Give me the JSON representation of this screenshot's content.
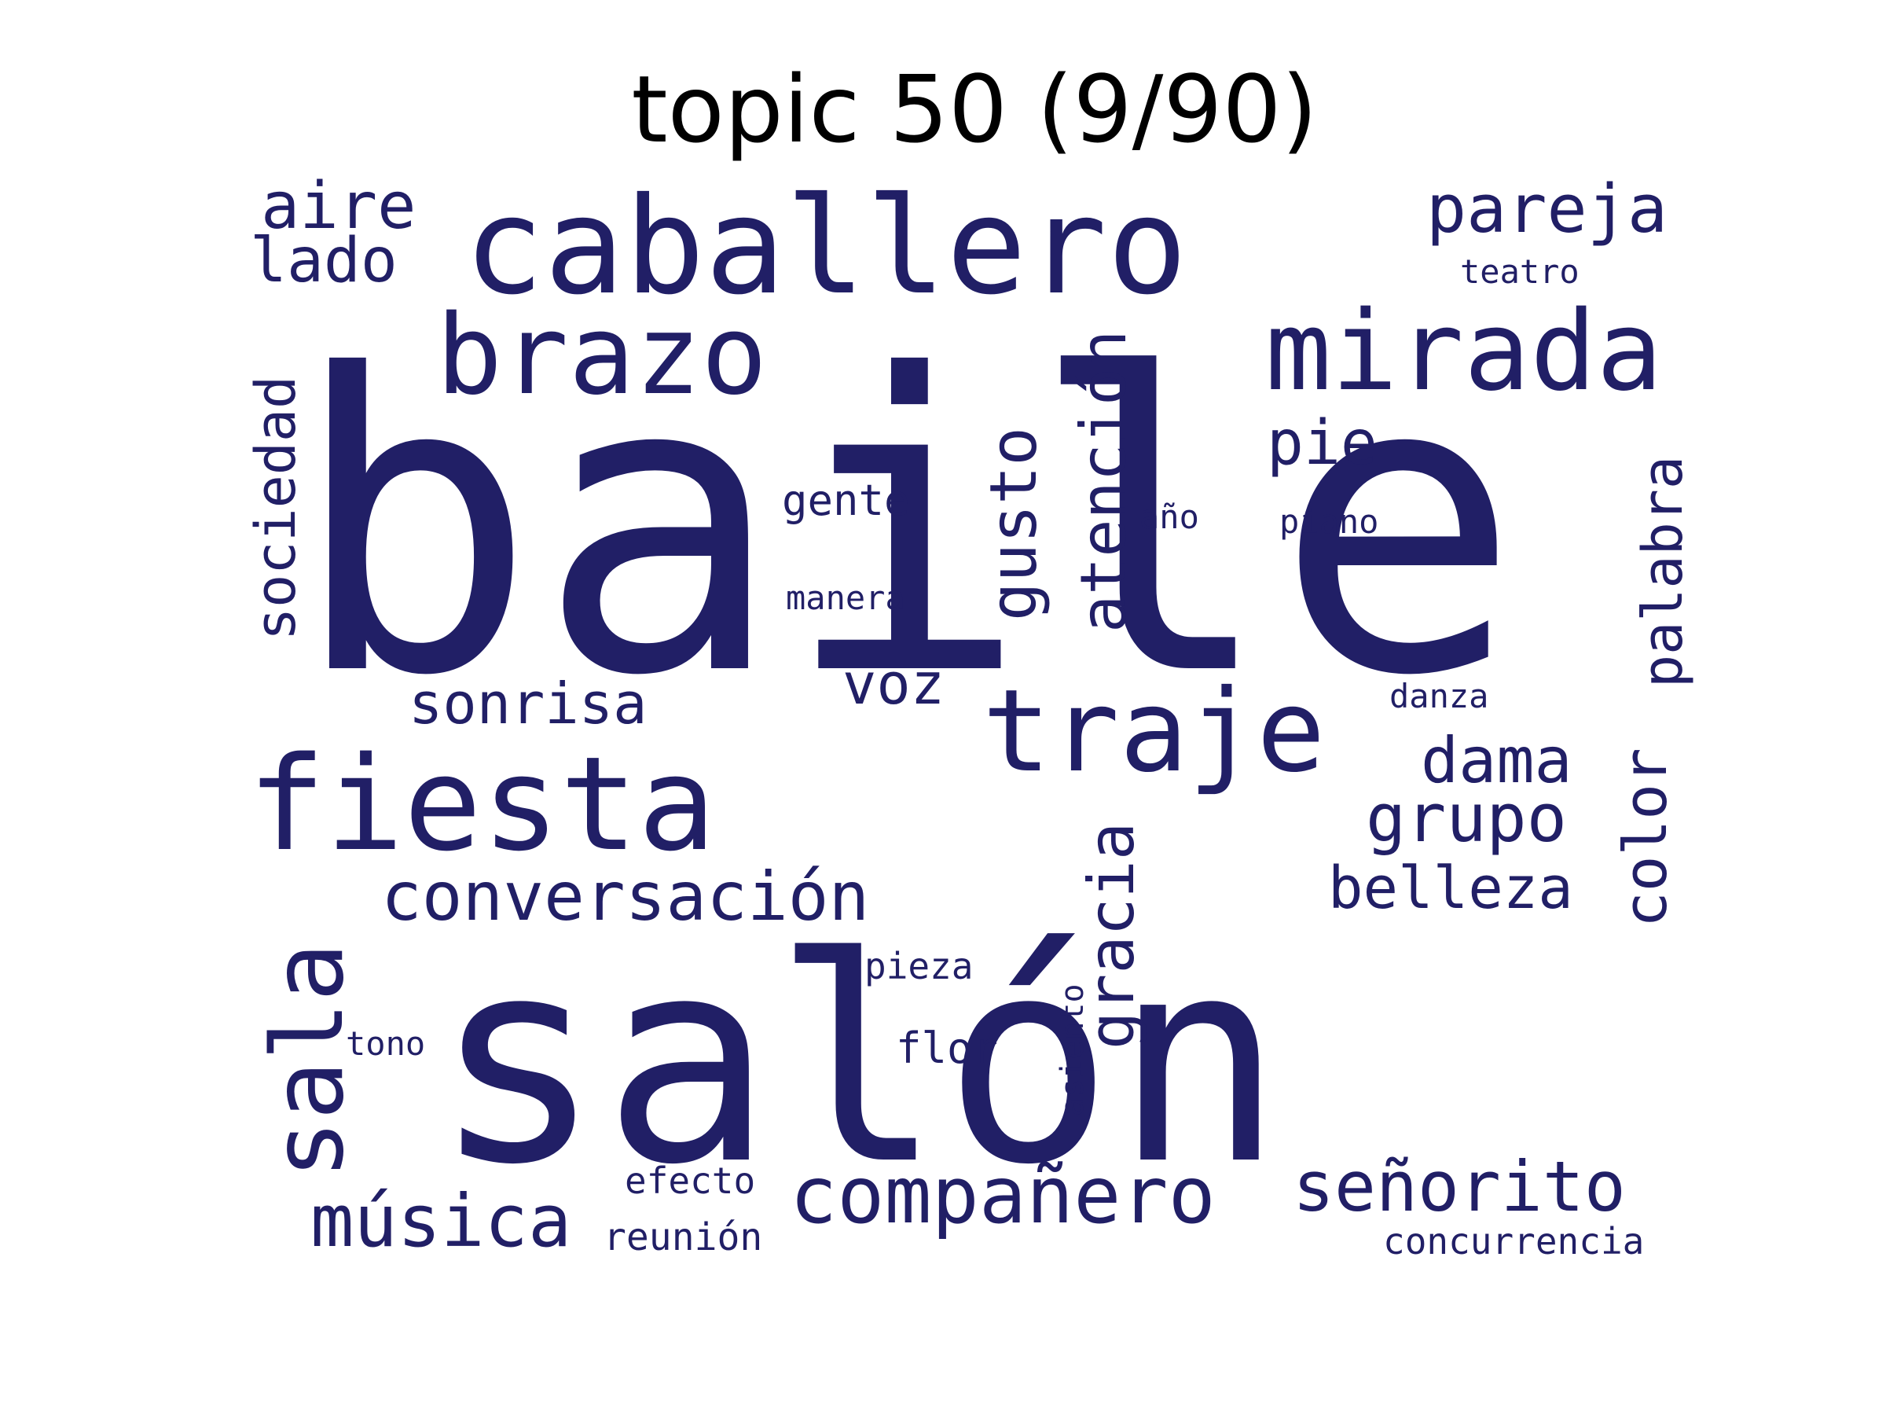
{
  "title": "topic 50 (9/90)",
  "chart_data": {
    "type": "wordcloud",
    "title": "topic 50 (9/90)",
    "color": "#211f66",
    "words": [
      {
        "text": "baile",
        "weight": 100,
        "orientation": "horizontal"
      },
      {
        "text": "salón",
        "weight": 86,
        "orientation": "horizontal"
      },
      {
        "text": "caballero",
        "weight": 40,
        "orientation": "horizontal"
      },
      {
        "text": "fiesta",
        "weight": 38,
        "orientation": "horizontal"
      },
      {
        "text": "brazo",
        "weight": 28,
        "orientation": "horizontal"
      },
      {
        "text": "traje",
        "weight": 27,
        "orientation": "horizontal"
      },
      {
        "text": "mirada",
        "weight": 26,
        "orientation": "horizontal"
      },
      {
        "text": "sala",
        "weight": 25,
        "orientation": "vertical"
      },
      {
        "text": "compañero",
        "weight": 18,
        "orientation": "horizontal"
      },
      {
        "text": "gusto",
        "weight": 16,
        "orientation": "vertical"
      },
      {
        "text": "atención",
        "weight": 15,
        "orientation": "vertical"
      },
      {
        "text": "música",
        "weight": 15,
        "orientation": "horizontal"
      },
      {
        "text": "gracia",
        "weight": 15,
        "orientation": "vertical"
      },
      {
        "text": "conversación",
        "weight": 15,
        "orientation": "horizontal"
      },
      {
        "text": "señorito",
        "weight": 14,
        "orientation": "horizontal"
      },
      {
        "text": "grupo",
        "weight": 14,
        "orientation": "horizontal"
      },
      {
        "text": "color",
        "weight": 14,
        "orientation": "vertical"
      },
      {
        "text": "pareja",
        "weight": 13,
        "orientation": "horizontal"
      },
      {
        "text": "sociedad",
        "weight": 13,
        "orientation": "vertical"
      },
      {
        "text": "dama",
        "weight": 13,
        "orientation": "horizontal"
      },
      {
        "text": "palabra",
        "weight": 13,
        "orientation": "vertical"
      },
      {
        "text": "belleza",
        "weight": 12,
        "orientation": "horizontal"
      },
      {
        "text": "aire",
        "weight": 12,
        "orientation": "horizontal"
      },
      {
        "text": "pie",
        "weight": 12,
        "orientation": "horizontal"
      },
      {
        "text": "voz",
        "weight": 12,
        "orientation": "horizontal"
      },
      {
        "text": "lado",
        "weight": 12,
        "orientation": "horizontal"
      },
      {
        "text": "sonrisa",
        "weight": 11,
        "orientation": "horizontal"
      },
      {
        "text": "gente",
        "weight": 8,
        "orientation": "horizontal"
      },
      {
        "text": "flor",
        "weight": 8,
        "orientation": "horizontal"
      },
      {
        "text": "efecto",
        "weight": 7,
        "orientation": "horizontal"
      },
      {
        "text": "reunión",
        "weight": 7,
        "orientation": "horizontal"
      },
      {
        "text": "concurrencia",
        "weight": 7,
        "orientation": "horizontal"
      },
      {
        "text": "pieza",
        "weight": 7,
        "orientation": "horizontal"
      },
      {
        "text": "manera",
        "weight": 6,
        "orientation": "horizontal"
      },
      {
        "text": "año",
        "weight": 6,
        "orientation": "horizontal"
      },
      {
        "text": "piano",
        "weight": 6,
        "orientation": "horizontal"
      },
      {
        "text": "danza",
        "weight": 6,
        "orientation": "horizontal"
      },
      {
        "text": "tono",
        "weight": 6,
        "orientation": "horizontal"
      },
      {
        "text": "teatro",
        "weight": 6,
        "orientation": "horizontal"
      },
      {
        "text": "asiento",
        "weight": 6,
        "orientation": "vertical"
      }
    ]
  }
}
